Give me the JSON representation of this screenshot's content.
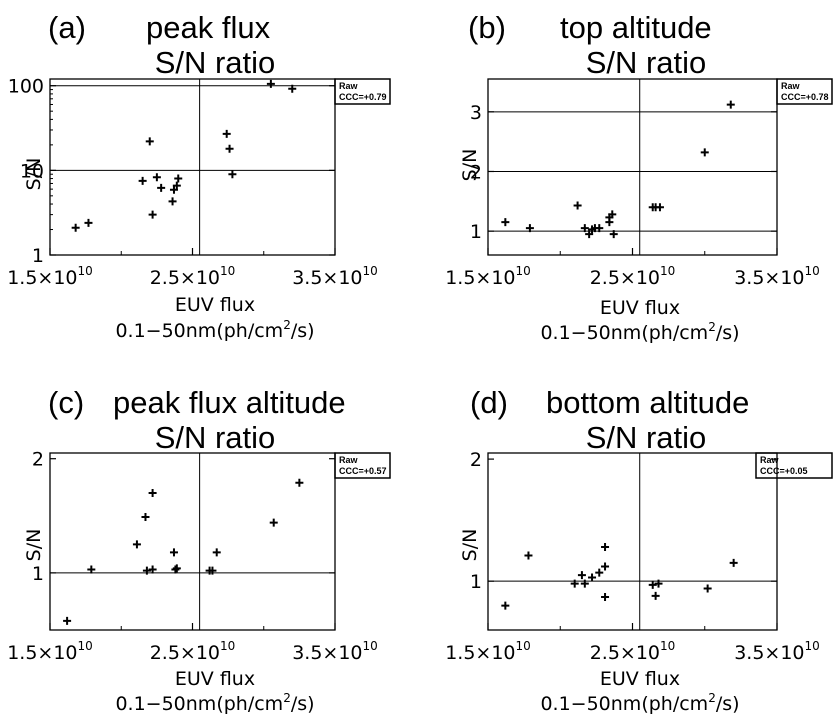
{
  "panels": [
    {
      "panel_label": "(a)",
      "title_line1": "peak flux",
      "title_line2": "S/N ratio",
      "box_line1": "Raw",
      "box_line2": "CCC=+0.79"
    },
    {
      "panel_label": "(b)",
      "title_line1": "top altitude",
      "title_line2": "S/N ratio",
      "box_line1": "Raw",
      "box_line2": "CCC=+0.78"
    },
    {
      "panel_label": "(c)",
      "title_line1": "peak flux altitude",
      "title_line2": "S/N ratio",
      "box_line1": "Raw",
      "box_line2": "CCC=+0.57"
    },
    {
      "panel_label": "(d)",
      "title_line1": "bottom altitude",
      "title_line2": "S/N ratio",
      "box_line1": "Raw",
      "box_line2": "CCC=+0.05"
    }
  ],
  "chart_data": [
    {
      "type": "scatter",
      "title": "(a) peak flux S/N ratio",
      "ylabel": "S/N",
      "xlabel": "EUV flux",
      "xlabel_line2": "0.1-50nm(ph/cm2/s)",
      "xlim": [
        15000000000.0,
        35000000000.0
      ],
      "ylim": [
        1,
        120
      ],
      "yscale": "log",
      "x_ticks": [
        {
          "value": 15000000000.0,
          "mantissa": "1.5",
          "exponent": "10"
        },
        {
          "value": 25000000000.0,
          "mantissa": "2.5",
          "exponent": "10"
        },
        {
          "value": 35000000000.0,
          "mantissa": "3.5",
          "exponent": "10"
        }
      ],
      "y_ticks": [
        {
          "value": 1,
          "label": "1"
        },
        {
          "value": 10,
          "label": "10"
        },
        {
          "value": 100,
          "label": "100"
        }
      ],
      "hlines": [
        10,
        100
      ],
      "vline": 25500000000.0,
      "marker": "+",
      "x": [
        16800000000.0,
        17700000000.0,
        21500000000.0,
        22000000000.0,
        22200000000.0,
        22500000000.0,
        22800000000.0,
        23600000000.0,
        23700000000.0,
        23900000000.0,
        24000000000.0,
        27400000000.0,
        27600000000.0,
        27800000000.0,
        30500000000.0,
        32000000000.0
      ],
      "y": [
        2.1,
        2.4,
        7.5,
        22,
        3.0,
        8.3,
        6.2,
        4.3,
        5.9,
        6.6,
        8.0,
        27,
        18,
        9.0,
        105,
        92
      ]
    },
    {
      "type": "scatter",
      "title": "(b) top altitude S/N ratio",
      "ylabel": "S/N",
      "xlabel": "EUV flux",
      "xlabel_line2": "0.1-50nm(ph/cm2/s)",
      "xlim": [
        15000000000.0,
        35000000000.0
      ],
      "ylim": [
        0.6,
        3.55
      ],
      "yscale": "linear",
      "x_ticks": [
        {
          "value": 15000000000.0,
          "mantissa": "1.5",
          "exponent": "10"
        },
        {
          "value": 25000000000.0,
          "mantissa": "2.5",
          "exponent": "10"
        },
        {
          "value": 35000000000.0,
          "mantissa": "3.5",
          "exponent": "10"
        }
      ],
      "y_ticks": [
        {
          "value": 1,
          "label": "1"
        },
        {
          "value": 2,
          "label": "2"
        },
        {
          "value": 3,
          "label": "3"
        }
      ],
      "hlines": [
        1,
        2,
        3
      ],
      "vline": 25500000000.0,
      "marker": "+",
      "x": [
        16200000000.0,
        17900000000.0,
        21200000000.0,
        21700000000.0,
        22000000000.0,
        22200000000.0,
        22400000000.0,
        22700000000.0,
        23400000000.0,
        23400000000.0,
        23600000000.0,
        23700000000.0,
        26400000000.0,
        26600000000.0,
        26900000000.0,
        30000000000.0,
        31800000000.0
      ],
      "y": [
        1.15,
        1.05,
        1.43,
        1.05,
        0.95,
        1.03,
        1.05,
        1.05,
        1.15,
        1.23,
        1.28,
        0.95,
        1.4,
        1.4,
        1.4,
        2.32,
        3.12
      ]
    },
    {
      "type": "scatter",
      "title": "(c) peak flux altitude S/N ratio",
      "ylabel": "S/N",
      "xlabel": "EUV flux",
      "xlabel_line2": "0.1-50nm(ph/cm2/s)",
      "xlim": [
        15000000000.0,
        35000000000.0
      ],
      "ylim": [
        0.5,
        2.05
      ],
      "yscale": "linear",
      "x_ticks": [
        {
          "value": 15000000000.0,
          "mantissa": "1.5",
          "exponent": "10"
        },
        {
          "value": 25000000000.0,
          "mantissa": "2.5",
          "exponent": "10"
        },
        {
          "value": 35000000000.0,
          "mantissa": "3.5",
          "exponent": "10"
        }
      ],
      "y_ticks": [
        {
          "value": 1,
          "label": "1"
        },
        {
          "value": 2,
          "label": "2"
        }
      ],
      "hlines": [
        1
      ],
      "vline": 25500000000.0,
      "marker": "+",
      "x": [
        16200000000.0,
        17900000000.0,
        21100000000.0,
        21700000000.0,
        21800000000.0,
        22200000000.0,
        22200000000.0,
        23700000000.0,
        23800000000.0,
        23900000000.0,
        26200000000.0,
        26400000000.0,
        26700000000.0,
        30700000000.0,
        32500000000.0
      ],
      "y": [
        0.58,
        1.03,
        1.25,
        1.49,
        1.02,
        1.7,
        1.03,
        1.18,
        1.03,
        1.04,
        1.02,
        1.02,
        1.18,
        1.44,
        1.79
      ]
    },
    {
      "type": "scatter",
      "title": "(d) bottom altitude S/N ratio",
      "ylabel": "S/N",
      "xlabel": "EUV flux",
      "xlabel_line2": "0.1-50nm(ph/cm2/s)",
      "xlim": [
        15000000000.0,
        35000000000.0
      ],
      "ylim": [
        0.6,
        2.05
      ],
      "yscale": "linear",
      "x_ticks": [
        {
          "value": 15000000000.0,
          "mantissa": "1.5",
          "exponent": "10"
        },
        {
          "value": 25000000000.0,
          "mantissa": "2.5",
          "exponent": "10"
        },
        {
          "value": 35000000000.0,
          "mantissa": "3.5",
          "exponent": "10"
        }
      ],
      "y_ticks": [
        {
          "value": 1,
          "label": "1"
        },
        {
          "value": 2,
          "label": "2"
        }
      ],
      "hlines": [
        1
      ],
      "vline": 25500000000.0,
      "marker": "+",
      "x": [
        16200000000.0,
        17800000000.0,
        21000000000.0,
        21500000000.0,
        21700000000.0,
        22200000000.0,
        22700000000.0,
        23100000000.0,
        23100000000.0,
        23100000000.0,
        26400000000.0,
        26600000000.0,
        26800000000.0,
        30200000000.0,
        32000000000.0
      ],
      "y": [
        0.8,
        1.21,
        0.98,
        1.05,
        0.98,
        1.03,
        1.07,
        0.87,
        1.12,
        1.28,
        0.97,
        0.88,
        0.98,
        0.94,
        1.15
      ]
    }
  ]
}
